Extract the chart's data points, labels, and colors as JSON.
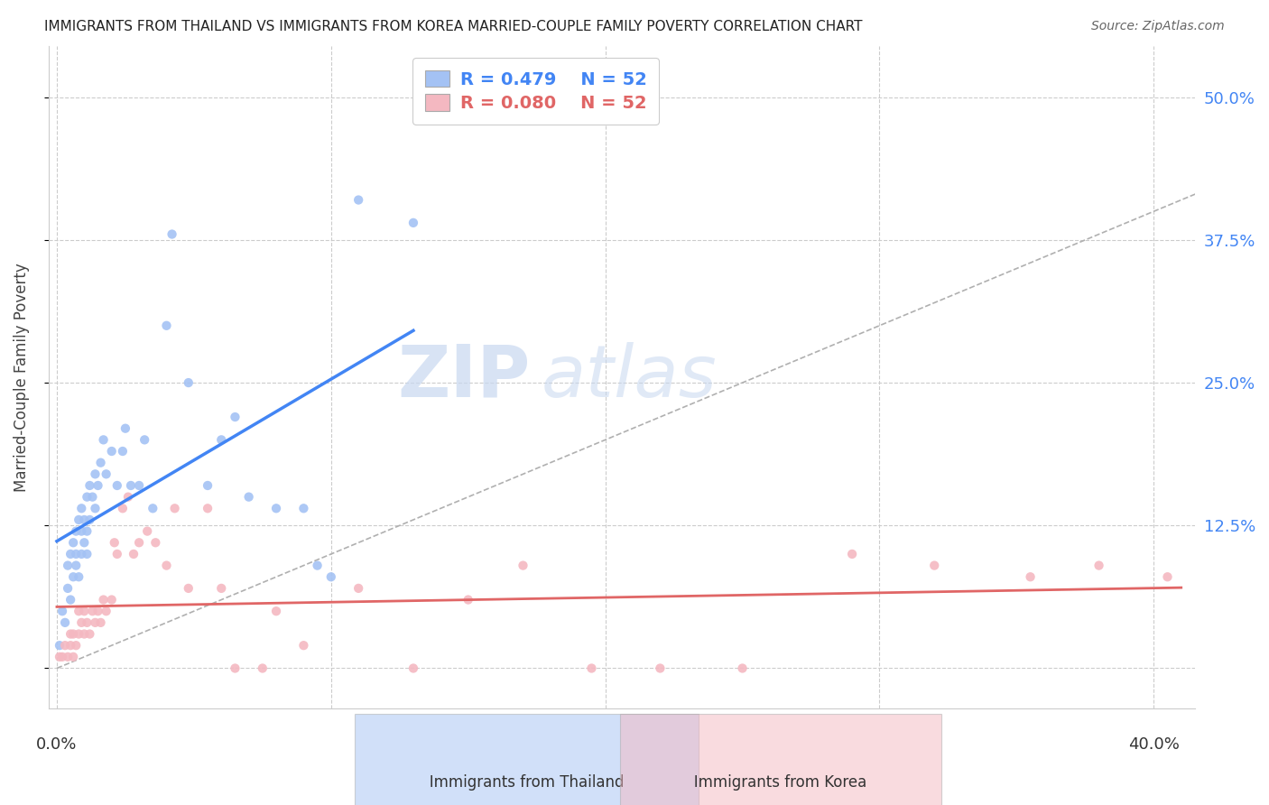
{
  "title": "IMMIGRANTS FROM THAILAND VS IMMIGRANTS FROM KOREA MARRIED-COUPLE FAMILY POVERTY CORRELATION CHART",
  "source": "Source: ZipAtlas.com",
  "ylabel": "Married-Couple Family Poverty",
  "y_ticks": [
    0.0,
    0.125,
    0.25,
    0.375,
    0.5
  ],
  "y_tick_labels": [
    "",
    "12.5%",
    "25.0%",
    "37.5%",
    "50.0%"
  ],
  "x_lim": [
    -0.003,
    0.415
  ],
  "y_lim": [
    -0.035,
    0.545
  ],
  "legend_r": [
    "R = 0.479",
    "R = 0.080"
  ],
  "legend_n": [
    "N = 52",
    "N = 52"
  ],
  "thailand_color": "#a4c2f4",
  "korea_color": "#f4b8c1",
  "thailand_line_color": "#4285f4",
  "korea_line_color": "#e06666",
  "dashed_line_color": "#b0b0b0",
  "watermark_zip": "ZIP",
  "watermark_atlas": "atlas",
  "thailand_x": [
    0.001,
    0.002,
    0.003,
    0.004,
    0.004,
    0.005,
    0.005,
    0.006,
    0.006,
    0.007,
    0.007,
    0.007,
    0.008,
    0.008,
    0.009,
    0.009,
    0.009,
    0.01,
    0.01,
    0.011,
    0.011,
    0.011,
    0.012,
    0.012,
    0.013,
    0.014,
    0.014,
    0.015,
    0.016,
    0.017,
    0.018,
    0.02,
    0.022,
    0.024,
    0.025,
    0.027,
    0.03,
    0.032,
    0.035,
    0.04,
    0.042,
    0.048,
    0.055,
    0.06,
    0.065,
    0.07,
    0.08,
    0.09,
    0.095,
    0.1,
    0.11,
    0.13
  ],
  "thailand_y": [
    0.02,
    0.05,
    0.04,
    0.07,
    0.09,
    0.06,
    0.1,
    0.08,
    0.11,
    0.09,
    0.12,
    0.1,
    0.08,
    0.13,
    0.1,
    0.12,
    0.14,
    0.11,
    0.13,
    0.1,
    0.12,
    0.15,
    0.13,
    0.16,
    0.15,
    0.14,
    0.17,
    0.16,
    0.18,
    0.2,
    0.17,
    0.19,
    0.16,
    0.19,
    0.21,
    0.16,
    0.16,
    0.2,
    0.14,
    0.3,
    0.38,
    0.25,
    0.16,
    0.2,
    0.22,
    0.15,
    0.14,
    0.14,
    0.09,
    0.08,
    0.41,
    0.39
  ],
  "korea_x": [
    0.001,
    0.002,
    0.003,
    0.004,
    0.005,
    0.005,
    0.006,
    0.006,
    0.007,
    0.008,
    0.008,
    0.009,
    0.01,
    0.01,
    0.011,
    0.012,
    0.013,
    0.014,
    0.015,
    0.016,
    0.017,
    0.018,
    0.02,
    0.021,
    0.022,
    0.024,
    0.026,
    0.028,
    0.03,
    0.033,
    0.036,
    0.04,
    0.043,
    0.048,
    0.055,
    0.06,
    0.065,
    0.075,
    0.08,
    0.09,
    0.11,
    0.13,
    0.15,
    0.17,
    0.195,
    0.22,
    0.25,
    0.29,
    0.32,
    0.355,
    0.38,
    0.405
  ],
  "korea_y": [
    0.01,
    0.01,
    0.02,
    0.01,
    0.02,
    0.03,
    0.01,
    0.03,
    0.02,
    0.03,
    0.05,
    0.04,
    0.03,
    0.05,
    0.04,
    0.03,
    0.05,
    0.04,
    0.05,
    0.04,
    0.06,
    0.05,
    0.06,
    0.11,
    0.1,
    0.14,
    0.15,
    0.1,
    0.11,
    0.12,
    0.11,
    0.09,
    0.14,
    0.07,
    0.14,
    0.07,
    0.0,
    0.0,
    0.05,
    0.02,
    0.07,
    0.0,
    0.06,
    0.09,
    0.0,
    0.0,
    0.0,
    0.1,
    0.09,
    0.08,
    0.09,
    0.08
  ]
}
